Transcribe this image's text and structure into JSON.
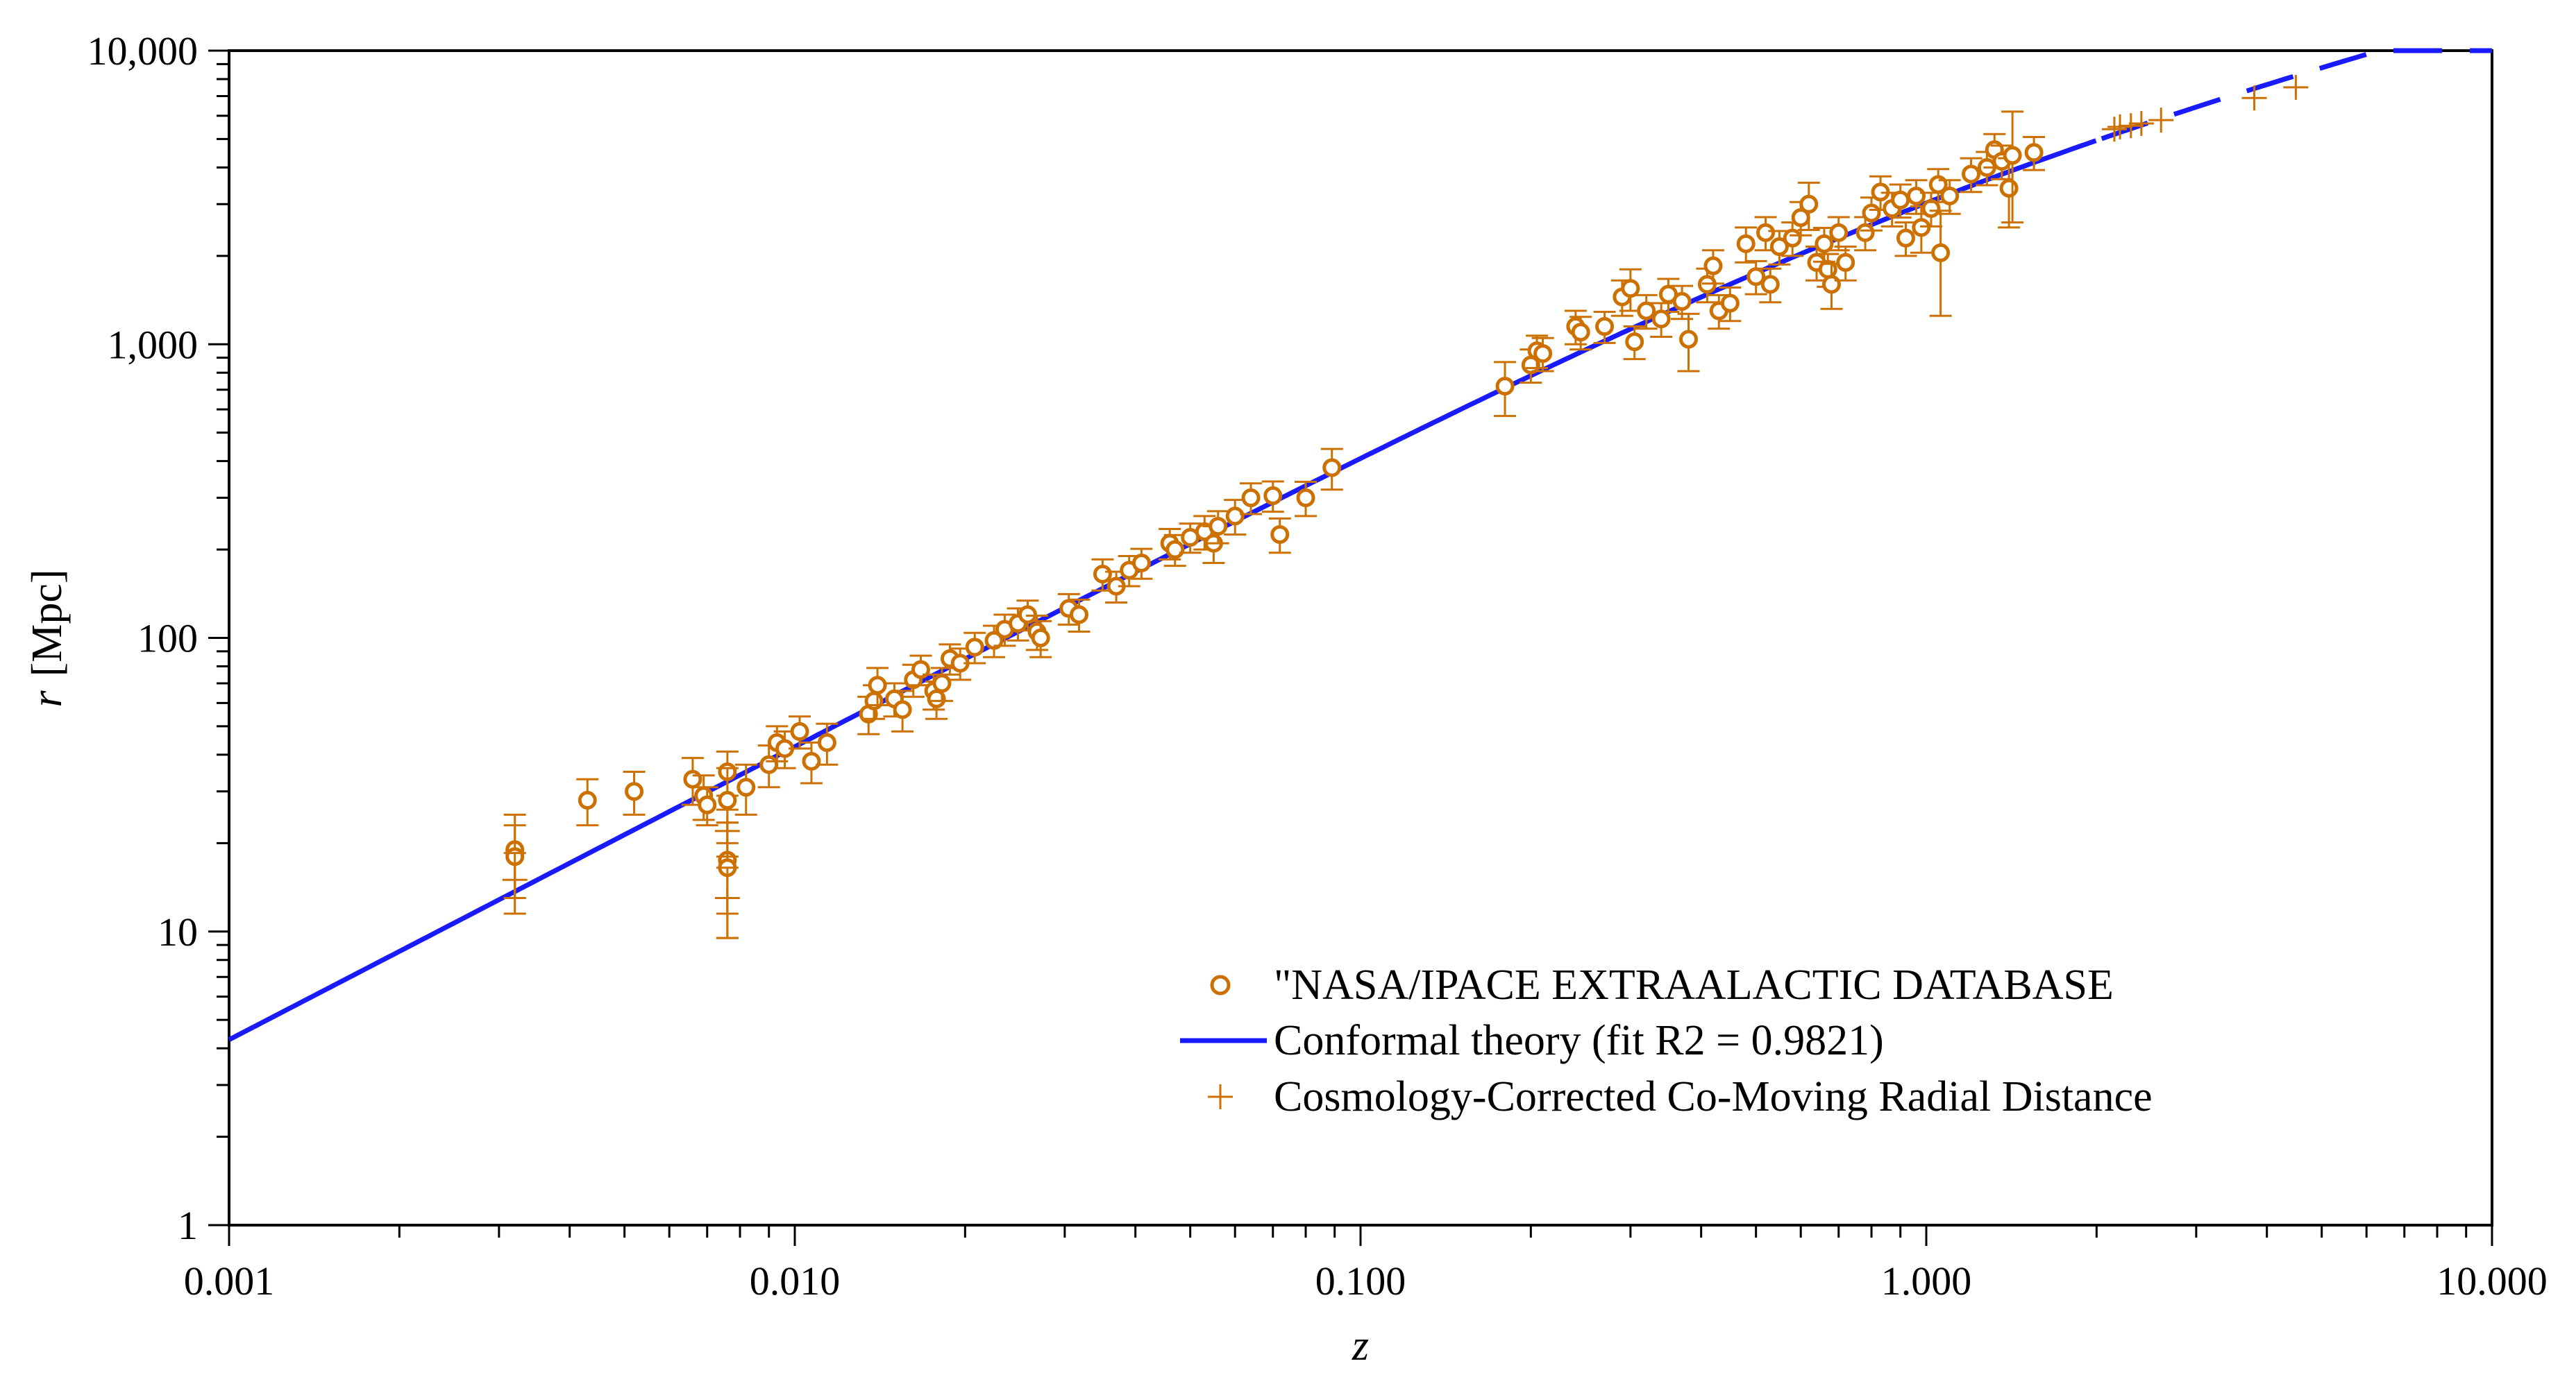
{
  "chart_data": {
    "type": "scatter",
    "x_scale": "log",
    "y_scale": "log",
    "xlabel": "z",
    "ylabel": "r",
    "ylabel_unit": "[Mpc]",
    "xlim": [
      0.001,
      10
    ],
    "ylim": [
      1,
      10000
    ],
    "x_ticks": [
      {
        "value": 0.001,
        "label": "0.001"
      },
      {
        "value": 0.01,
        "label": "0.010"
      },
      {
        "value": 0.1,
        "label": "0.100"
      },
      {
        "value": 1,
        "label": "1.000"
      },
      {
        "value": 10,
        "label": "10.000"
      }
    ],
    "y_ticks": [
      {
        "value": 1,
        "label": "1"
      },
      {
        "value": 10,
        "label": "10"
      },
      {
        "value": 100,
        "label": "100"
      },
      {
        "value": 1000,
        "label": "1,000"
      },
      {
        "value": 10000,
        "label": "10,000"
      }
    ],
    "legend_position": "bottom-right",
    "colors": {
      "observed": "#cc7000",
      "fit": "#1a1aff",
      "corrected": "#cc7000",
      "axis": "#000000"
    },
    "series": [
      {
        "name": "\"NASA/IPACE  EXTRAALACTIC  DATABASE",
        "kind": "points-with-error",
        "points": [
          [
            0.0032,
            19,
            6
          ],
          [
            0.0032,
            18,
            5
          ],
          [
            0.0043,
            28,
            5
          ],
          [
            0.0052,
            30,
            5
          ],
          [
            0.0066,
            33,
            6
          ],
          [
            0.0069,
            29,
            5
          ],
          [
            0.007,
            27,
            4
          ],
          [
            0.0076,
            35,
            6
          ],
          [
            0.0076,
            28,
            8
          ],
          [
            0.0076,
            17.5,
            6
          ],
          [
            0.0076,
            16.5,
            7
          ],
          [
            0.0082,
            31,
            6
          ],
          [
            0.009,
            37,
            6
          ],
          [
            0.0093,
            44,
            6
          ],
          [
            0.0096,
            42,
            6
          ],
          [
            0.0102,
            48,
            6
          ],
          [
            0.0107,
            38,
            6
          ],
          [
            0.0114,
            44,
            7
          ],
          [
            0.0135,
            55,
            8
          ],
          [
            0.0138,
            61,
            8
          ],
          [
            0.014,
            69,
            10
          ],
          [
            0.015,
            62,
            8
          ],
          [
            0.0155,
            57,
            9
          ],
          [
            0.0162,
            72,
            9
          ],
          [
            0.0167,
            78,
            9
          ],
          [
            0.0176,
            66,
            9
          ],
          [
            0.0178,
            62,
            9
          ],
          [
            0.0182,
            70,
            9
          ],
          [
            0.0188,
            85,
            10
          ],
          [
            0.0196,
            82,
            10
          ],
          [
            0.0208,
            93,
            11
          ],
          [
            0.0225,
            98,
            12
          ],
          [
            0.0235,
            107,
            13
          ],
          [
            0.0248,
            112,
            14
          ],
          [
            0.0258,
            120,
            14
          ],
          [
            0.0268,
            105,
            14
          ],
          [
            0.0272,
            100,
            14
          ],
          [
            0.0305,
            126,
            15
          ],
          [
            0.0318,
            120,
            15
          ],
          [
            0.035,
            165,
            20
          ],
          [
            0.037,
            150,
            18
          ],
          [
            0.039,
            170,
            20
          ],
          [
            0.041,
            180,
            21
          ],
          [
            0.046,
            210,
            25
          ],
          [
            0.047,
            200,
            24
          ],
          [
            0.05,
            220,
            25
          ],
          [
            0.053,
            230,
            30
          ],
          [
            0.055,
            210,
            30
          ],
          [
            0.056,
            240,
            30
          ],
          [
            0.06,
            260,
            35
          ],
          [
            0.064,
            300,
            36
          ],
          [
            0.07,
            305,
            36
          ],
          [
            0.072,
            225,
            30
          ],
          [
            0.08,
            300,
            40
          ],
          [
            0.089,
            380,
            60
          ],
          [
            0.18,
            720,
            150
          ],
          [
            0.2,
            850,
            110
          ],
          [
            0.205,
            950,
            120
          ],
          [
            0.21,
            930,
            120
          ],
          [
            0.24,
            1150,
            150
          ],
          [
            0.245,
            1100,
            140
          ],
          [
            0.27,
            1150,
            140
          ],
          [
            0.29,
            1450,
            200
          ],
          [
            0.3,
            1550,
            250
          ],
          [
            0.305,
            1020,
            130
          ],
          [
            0.32,
            1300,
            170
          ],
          [
            0.34,
            1220,
            160
          ],
          [
            0.35,
            1480,
            190
          ],
          [
            0.37,
            1400,
            180
          ],
          [
            0.38,
            1040,
            230
          ],
          [
            0.41,
            1600,
            210
          ],
          [
            0.42,
            1850,
            240
          ],
          [
            0.43,
            1300,
            170
          ],
          [
            0.45,
            1380,
            180
          ],
          [
            0.48,
            2200,
            300
          ],
          [
            0.5,
            1700,
            220
          ],
          [
            0.52,
            2400,
            310
          ],
          [
            0.53,
            1600,
            210
          ],
          [
            0.55,
            2150,
            280
          ],
          [
            0.58,
            2300,
            300
          ],
          [
            0.6,
            2700,
            350
          ],
          [
            0.62,
            3000,
            550
          ],
          [
            0.64,
            1900,
            250
          ],
          [
            0.66,
            2200,
            290
          ],
          [
            0.67,
            1800,
            230
          ],
          [
            0.68,
            1600,
            280
          ],
          [
            0.7,
            2400,
            310
          ],
          [
            0.72,
            1900,
            250
          ],
          [
            0.78,
            2400,
            310
          ],
          [
            0.8,
            2800,
            360
          ],
          [
            0.83,
            3300,
            430
          ],
          [
            0.87,
            2900,
            380
          ],
          [
            0.9,
            3100,
            400
          ],
          [
            0.92,
            2300,
            300
          ],
          [
            0.96,
            3200,
            420
          ],
          [
            0.98,
            2500,
            450
          ],
          [
            1.02,
            2900,
            380
          ],
          [
            1.05,
            3500,
            450
          ],
          [
            1.06,
            2050,
            800
          ],
          [
            1.1,
            3200,
            420
          ],
          [
            1.2,
            3800,
            500
          ],
          [
            1.28,
            4000,
            520
          ],
          [
            1.32,
            4600,
            600
          ],
          [
            1.36,
            4200,
            550
          ],
          [
            1.4,
            3400,
            900
          ],
          [
            1.42,
            4400,
            1800
          ],
          [
            1.55,
            4500,
            580
          ]
        ]
      },
      {
        "name": "Conformal theory (fit R2 = 0.9821)",
        "kind": "curve",
        "H0": 70,
        "c": 299792.458,
        "fit_x_range": [
          0.001,
          10
        ],
        "dashed_from_z": 2.0
      },
      {
        "name": "Cosmology-Corrected Co-Moving Radial Distance",
        "kind": "points-plus",
        "points": [
          [
            0.0032,
            15,
            3.5
          ],
          [
            0.0076,
            13,
            3.5
          ],
          [
            0.0076,
            22,
            4
          ],
          [
            2.15,
            5400,
            0
          ],
          [
            2.2,
            5500,
            0
          ],
          [
            2.3,
            5550,
            0
          ],
          [
            2.4,
            5650,
            0
          ],
          [
            2.6,
            5800,
            0
          ],
          [
            3.8,
            6900,
            0
          ],
          [
            4.5,
            7500,
            0
          ]
        ]
      }
    ]
  }
}
